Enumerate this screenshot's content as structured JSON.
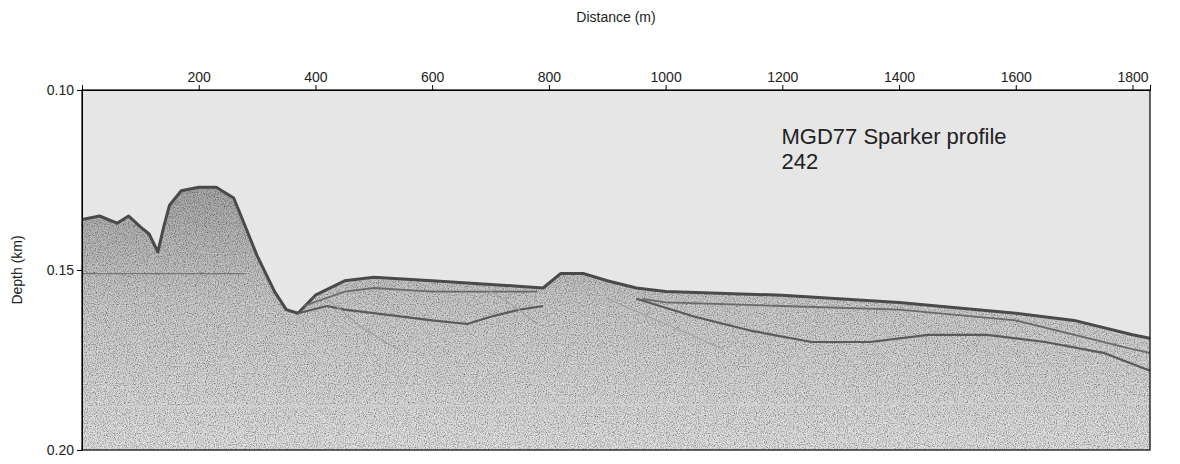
{
  "chart_data": {
    "type": "line",
    "x_label": "Distance (m)",
    "y_label": "Depth (km)",
    "annotation": [
      "MGD77 Sparker profile",
      "242"
    ],
    "xlim": [
      0,
      1830
    ],
    "xticks": [
      200,
      400,
      600,
      800,
      1000,
      1200,
      1400,
      1600,
      1800
    ],
    "ylim": [
      0.1,
      0.2
    ],
    "yticks": [
      {
        "value": 0.1,
        "label": "0.10"
      },
      {
        "value": 0.15,
        "label": "0.15"
      },
      {
        "value": 0.2,
        "label": "0.20"
      }
    ],
    "grid": false,
    "series": [
      {
        "color": "#4a4a4a",
        "x": [
          0,
          30,
          60,
          80,
          100,
          115,
          130,
          140,
          150,
          170,
          200,
          230,
          260,
          280,
          300,
          330,
          350,
          370,
          400,
          450,
          500,
          600,
          700,
          790,
          820,
          860,
          900,
          950,
          1000,
          1200,
          1400,
          1600,
          1700,
          1800,
          1830
        ],
        "values": [
          0.136,
          0.135,
          0.137,
          0.135,
          0.138,
          0.14,
          0.145,
          0.138,
          0.132,
          0.128,
          0.127,
          0.127,
          0.13,
          0.138,
          0.146,
          0.156,
          0.161,
          0.162,
          0.157,
          0.153,
          0.152,
          0.153,
          0.154,
          0.155,
          0.151,
          0.151,
          0.153,
          0.155,
          0.156,
          0.157,
          0.159,
          0.162,
          0.164,
          0.168,
          0.169
        ]
      },
      {
        "color": "#6a6a6a",
        "x": [
          380,
          450,
          500,
          600,
          700,
          780,
          null,
          960,
          1000,
          1200,
          1400,
          1600,
          1800,
          1830
        ],
        "values": [
          0.16,
          0.156,
          0.155,
          0.156,
          0.156,
          0.156,
          null,
          0.158,
          0.159,
          0.16,
          0.161,
          0.164,
          0.172,
          0.173
        ]
      },
      {
        "color": "#5a5a5a",
        "x": [
          370,
          420,
          450,
          500,
          600,
          660,
          700,
          750,
          790,
          null,
          950,
          1050,
          1150,
          1250,
          1350,
          1450,
          1550,
          1650,
          1750,
          1830
        ],
        "values": [
          0.162,
          0.16,
          0.161,
          0.162,
          0.164,
          0.165,
          0.163,
          0.161,
          0.16,
          null,
          0.158,
          0.163,
          0.167,
          0.17,
          0.17,
          0.168,
          0.168,
          0.17,
          0.173,
          0.178
        ]
      },
      {
        "color": "#777777",
        "x": [
          0,
          280
        ],
        "values": [
          0.151,
          0.151
        ]
      },
      {
        "color": "#a0a0a0",
        "x": [
          420,
          480,
          540,
          null,
          700,
          740,
          780,
          null,
          900,
          1000,
          1100
        ],
        "values": [
          0.158,
          0.166,
          0.172,
          null,
          0.156,
          0.16,
          0.165,
          null,
          0.158,
          0.165,
          0.172
        ]
      },
      {
        "color": "#cfcfcf",
        "x": [
          0,
          1830
        ],
        "values": [
          0.188,
          0.187
        ]
      }
    ]
  }
}
